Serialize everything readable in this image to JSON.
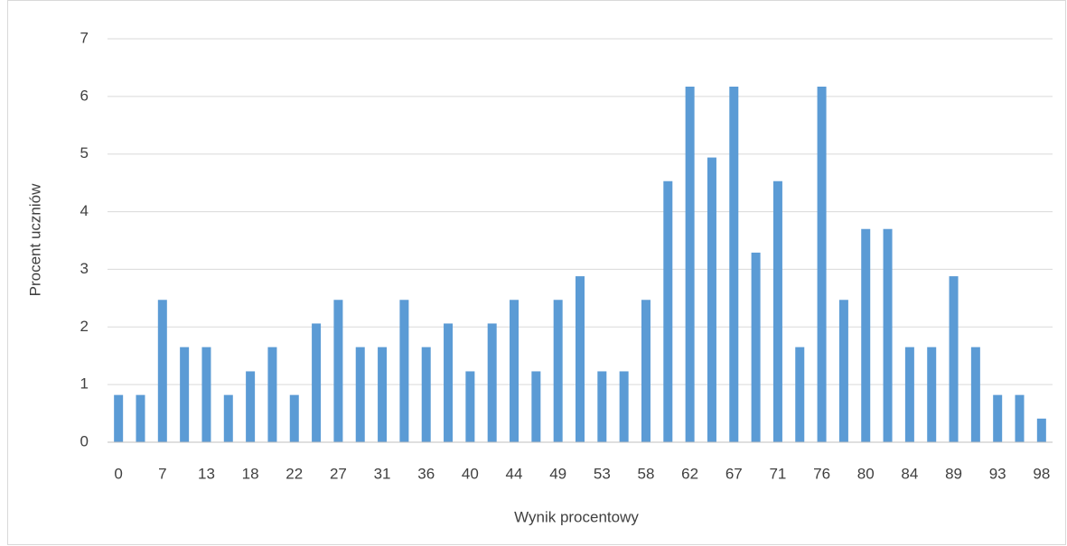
{
  "chart_data": {
    "type": "bar",
    "x_label": "Wynik procentowy",
    "y_label": "Procent uczniów",
    "categories": [
      "0",
      null,
      "7",
      null,
      "13",
      null,
      "18",
      null,
      "22",
      null,
      "27",
      null,
      "31",
      null,
      "36",
      null,
      "40",
      null,
      "44",
      null,
      "49",
      null,
      "53",
      null,
      "58",
      null,
      "62",
      null,
      "67",
      null,
      "71",
      null,
      "76",
      null,
      "80",
      null,
      "84",
      null,
      "89",
      null,
      "93",
      null,
      "98"
    ],
    "values": [
      0.82,
      0.82,
      2.47,
      1.65,
      1.65,
      0.82,
      1.23,
      1.65,
      0.82,
      2.06,
      2.47,
      1.65,
      1.65,
      2.47,
      1.65,
      2.06,
      1.23,
      2.06,
      2.47,
      1.23,
      2.47,
      2.88,
      1.23,
      1.23,
      2.47,
      4.53,
      6.17,
      4.94,
      6.17,
      3.29,
      4.53,
      1.65,
      6.17,
      2.47,
      3.7,
      3.7,
      1.65,
      1.65,
      2.88,
      1.65,
      0.82,
      0.82,
      0.41
    ],
    "color": "#5b9bd5",
    "ylim": [
      0,
      7
    ],
    "yticks": [
      0,
      1,
      2,
      3,
      4,
      5,
      6,
      7
    ],
    "grid": true
  }
}
